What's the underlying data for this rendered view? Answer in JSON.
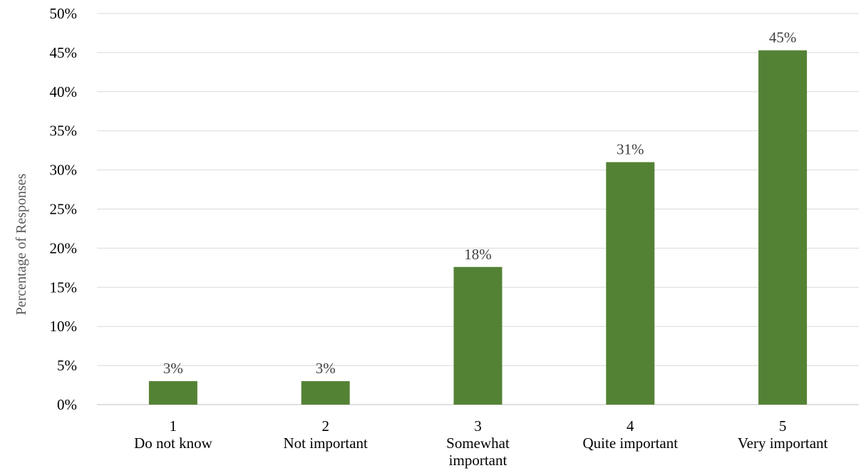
{
  "chart_data": {
    "type": "bar",
    "ylabel": "Percentage of Responses",
    "ylim": [
      0,
      50
    ],
    "y_ticks": [
      "0%",
      "5%",
      "10%",
      "15%",
      "20%",
      "25%",
      "30%",
      "35%",
      "40%",
      "45%",
      "50%"
    ],
    "grid": true,
    "categories": [
      {
        "number": "1",
        "label_lines": [
          "Do not know"
        ]
      },
      {
        "number": "2",
        "label_lines": [
          "Not important"
        ]
      },
      {
        "number": "3",
        "label_lines": [
          "Somewhat",
          "important"
        ]
      },
      {
        "number": "4",
        "label_lines": [
          "Quite important"
        ]
      },
      {
        "number": "5",
        "label_lines": [
          "Very important"
        ]
      }
    ],
    "values": [
      3,
      3,
      17.6,
      31,
      45.3
    ],
    "data_labels": [
      "3%",
      "3%",
      "18%",
      "31%",
      "45%"
    ],
    "bar_color": "#548235",
    "grid_color": "#d9d9d9"
  }
}
